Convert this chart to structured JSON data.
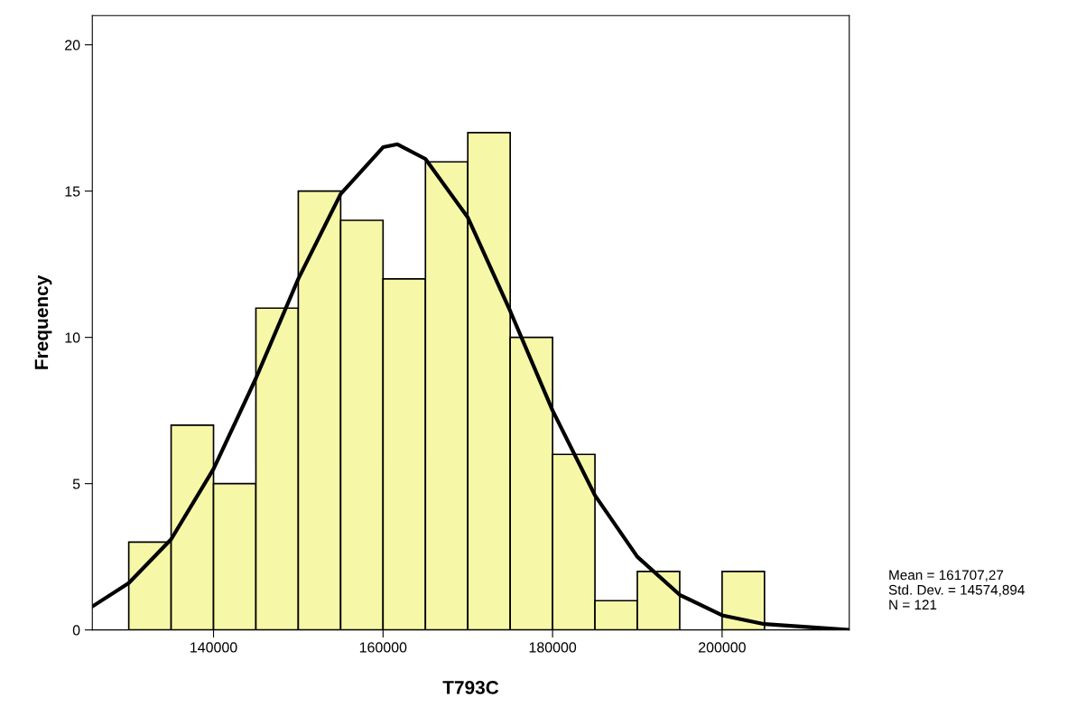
{
  "chart_data": {
    "type": "histogram",
    "xlabel": "T793C",
    "ylabel": "Frequency",
    "xlim": [
      125700,
      215000
    ],
    "xticks": [
      140000,
      160000,
      180000,
      200000
    ],
    "ylim": [
      0,
      21
    ],
    "yticks": [
      0,
      5,
      10,
      15,
      20
    ],
    "grid": false,
    "legend": false,
    "series": [
      {
        "color": "#f7f7a8",
        "bins": [
          130000,
          135000,
          140000,
          145000,
          150000,
          155000,
          160000,
          165000,
          170000,
          175000,
          180000,
          185000,
          190000,
          195000,
          200000,
          205000
        ],
        "values": [
          3,
          7,
          5,
          11,
          15,
          14,
          12,
          16,
          17,
          10,
          6,
          1,
          2,
          0,
          2
        ]
      },
      {
        "type": "line",
        "color": "#000000",
        "x": [
          125700,
          130000,
          135000,
          140000,
          145000,
          150000,
          155000,
          160000,
          161700,
          165000,
          170000,
          175000,
          180000,
          185000,
          190000,
          195000,
          200000,
          205000,
          210000,
          215000
        ],
        "values": [
          0.8,
          1.6,
          3.1,
          5.5,
          8.6,
          12.0,
          14.9,
          16.5,
          16.6,
          16.1,
          14.1,
          10.9,
          7.5,
          4.6,
          2.5,
          1.2,
          0.5,
          0.2,
          0.1,
          0.0
        ]
      }
    ],
    "annotations": [
      "Mean = 161707,27",
      "Std. Dev. = 14574,894",
      "N = 121"
    ]
  }
}
